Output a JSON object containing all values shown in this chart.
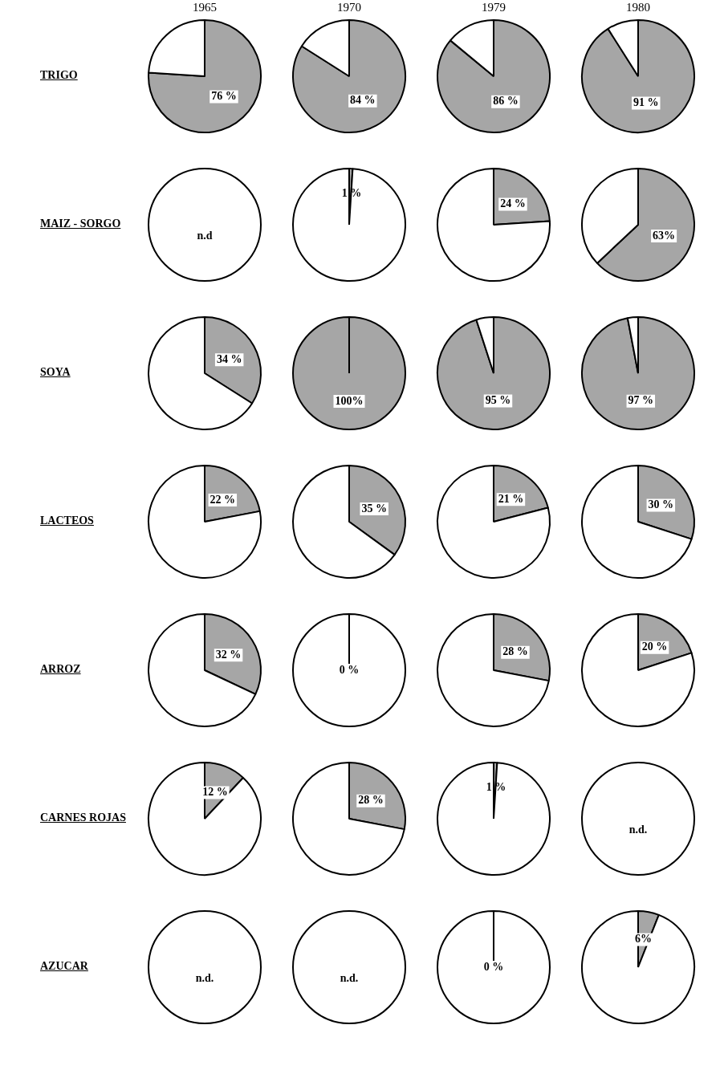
{
  "chart_data": [
    {
      "type": "pie",
      "title": "1965",
      "ylabel": "TRIGO",
      "categories": [
        null,
        null
      ],
      "values": [
        76,
        24
      ],
      "colors": [
        "#a6a6a6",
        "#ffffff"
      ],
      "value_labels": [
        "76 %",
        null
      ]
    },
    {
      "type": "pie",
      "title": "1970",
      "categories": [
        null,
        null
      ],
      "values": [
        84,
        16
      ],
      "colors": [
        "#a6a6a6",
        "#ffffff"
      ],
      "value_labels": [
        "84 %",
        null
      ]
    },
    {
      "type": "pie",
      "title": "1979",
      "categories": [
        null,
        null
      ],
      "values": [
        86,
        14
      ],
      "colors": [
        "#a6a6a6",
        "#ffffff"
      ],
      "value_labels": [
        "86 %",
        null
      ]
    },
    {
      "type": "pie",
      "title": "1980",
      "categories": [
        null,
        null
      ],
      "values": [
        91,
        9
      ],
      "colors": [
        "#a6a6a6",
        "#ffffff"
      ],
      "value_labels": [
        "91 %",
        null
      ]
    },
    {
      "type": "other",
      "ylabel": "MAIZ - SORGO",
      "annotations": [
        "n.d"
      ]
    },
    {
      "type": "pie",
      "categories": [
        null,
        null
      ],
      "values": [
        1,
        99
      ],
      "colors": [
        "#a6a6a6",
        "#ffffff"
      ],
      "value_labels": [
        "1 %",
        null
      ]
    },
    {
      "type": "pie",
      "categories": [
        null,
        null
      ],
      "values": [
        24,
        76
      ],
      "colors": [
        "#a6a6a6",
        "#ffffff"
      ],
      "value_labels": [
        "24 %",
        null
      ]
    },
    {
      "type": "pie",
      "categories": [
        null,
        null
      ],
      "values": [
        63,
        37
      ],
      "colors": [
        "#a6a6a6",
        "#ffffff"
      ],
      "value_labels": [
        "63%",
        null
      ]
    },
    {
      "type": "pie",
      "ylabel": "SOYA",
      "categories": [
        null,
        null
      ],
      "values": [
        34,
        66
      ],
      "colors": [
        "#a6a6a6",
        "#ffffff"
      ],
      "value_labels": [
        "34 %",
        null
      ]
    },
    {
      "type": "pie",
      "categories": [
        null,
        null
      ],
      "values": [
        100,
        0
      ],
      "colors": [
        "#a6a6a6",
        "#ffffff"
      ],
      "value_labels": [
        "100%",
        null
      ]
    },
    {
      "type": "pie",
      "categories": [
        null,
        null
      ],
      "values": [
        95,
        5
      ],
      "colors": [
        "#a6a6a6",
        "#ffffff"
      ],
      "value_labels": [
        "95 %",
        null
      ]
    },
    {
      "type": "pie",
      "categories": [
        null,
        null
      ],
      "values": [
        97,
        3
      ],
      "colors": [
        "#a6a6a6",
        "#ffffff"
      ],
      "value_labels": [
        "97 %",
        null
      ]
    },
    {
      "type": "pie",
      "ylabel": "LACTEOS",
      "categories": [
        null,
        null
      ],
      "values": [
        22,
        78
      ],
      "colors": [
        "#a6a6a6",
        "#ffffff"
      ],
      "value_labels": [
        "22 %",
        null
      ]
    },
    {
      "type": "pie",
      "categories": [
        null,
        null
      ],
      "values": [
        35,
        65
      ],
      "colors": [
        "#a6a6a6",
        "#ffffff"
      ],
      "value_labels": [
        "35 %",
        null
      ]
    },
    {
      "type": "pie",
      "categories": [
        null,
        null
      ],
      "values": [
        21,
        79
      ],
      "colors": [
        "#a6a6a6",
        "#ffffff"
      ],
      "value_labels": [
        "21 %",
        null
      ]
    },
    {
      "type": "pie",
      "categories": [
        null,
        null
      ],
      "values": [
        30,
        70
      ],
      "colors": [
        "#a6a6a6",
        "#ffffff"
      ],
      "value_labels": [
        "30 %",
        null
      ]
    },
    {
      "type": "pie",
      "ylabel": "ARROZ",
      "categories": [
        null,
        null
      ],
      "values": [
        32,
        68
      ],
      "colors": [
        "#a6a6a6",
        "#ffffff"
      ],
      "value_labels": [
        "32 %",
        null
      ]
    },
    {
      "type": "pie",
      "categories": [
        null,
        null
      ],
      "values": [
        0,
        100
      ],
      "colors": [
        "#a6a6a6",
        "#ffffff"
      ],
      "value_labels": [
        "0 %",
        null
      ]
    },
    {
      "type": "pie",
      "categories": [
        null,
        null
      ],
      "values": [
        28,
        72
      ],
      "colors": [
        "#a6a6a6",
        "#ffffff"
      ],
      "value_labels": [
        "28 %",
        null
      ]
    },
    {
      "type": "pie",
      "categories": [
        null,
        null
      ],
      "values": [
        20,
        80
      ],
      "colors": [
        "#a6a6a6",
        "#ffffff"
      ],
      "value_labels": [
        "20 %",
        null
      ]
    },
    {
      "type": "pie",
      "ylabel": "CARNES ROJAS",
      "categories": [
        null,
        null
      ],
      "values": [
        12,
        88
      ],
      "colors": [
        "#a6a6a6",
        "#ffffff"
      ],
      "value_labels": [
        "12 %",
        null
      ]
    },
    {
      "type": "pie",
      "categories": [
        null,
        null
      ],
      "values": [
        28,
        72
      ],
      "colors": [
        "#a6a6a6",
        "#ffffff"
      ],
      "value_labels": [
        "28 %",
        null
      ]
    },
    {
      "type": "pie",
      "categories": [
        null,
        null
      ],
      "values": [
        1,
        99
      ],
      "colors": [
        "#a6a6a6",
        "#ffffff"
      ],
      "value_labels": [
        "1 %",
        null
      ]
    },
    {
      "type": "other",
      "annotations": [
        "n.d."
      ]
    },
    {
      "type": "other",
      "ylabel": "AZUCAR",
      "annotations": [
        "n.d."
      ]
    },
    {
      "type": "other",
      "annotations": [
        "n.d."
      ]
    },
    {
      "type": "pie",
      "categories": [
        null,
        null
      ],
      "values": [
        0,
        100
      ],
      "colors": [
        "#a6a6a6",
        "#ffffff"
      ],
      "value_labels": [
        "0 %",
        null
      ]
    },
    {
      "type": "pie",
      "categories": [
        null,
        null
      ],
      "values": [
        6,
        94
      ],
      "colors": [
        "#a6a6a6",
        "#ffffff"
      ],
      "value_labels": [
        "6%",
        null
      ]
    }
  ]
}
